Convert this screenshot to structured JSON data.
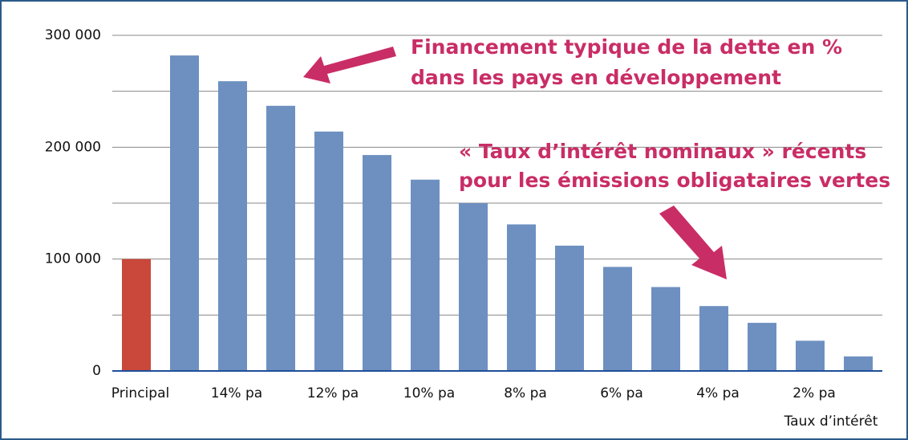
{
  "chart_data": {
    "type": "bar",
    "categories": [
      "Principal",
      null,
      "14% pa",
      null,
      "12% pa",
      null,
      "10% pa",
      null,
      "8% pa",
      null,
      "6% pa",
      null,
      "4% pa",
      null,
      "2% pa",
      null
    ],
    "values": [
      100000,
      282000,
      259000,
      237000,
      214000,
      193000,
      171000,
      150000,
      131000,
      112000,
      93000,
      75000,
      58000,
      43000,
      27000,
      13000
    ],
    "colors": [
      "#c9483b",
      "#6d90c0",
      "#6d90c0",
      "#6d90c0",
      "#6d90c0",
      "#6d90c0",
      "#6d90c0",
      "#6d90c0",
      "#6d90c0",
      "#6d90c0",
      "#6d90c0",
      "#6d90c0",
      "#6d90c0",
      "#6d90c0",
      "#6d90c0",
      "#6d90c0"
    ],
    "ylim": [
      0,
      300000
    ],
    "yticks": [
      {
        "value": 0,
        "label": "0"
      },
      {
        "value": 100000,
        "label": "100 000"
      },
      {
        "value": 200000,
        "label": "200 000"
      },
      {
        "value": 300000,
        "label": "300 000"
      }
    ],
    "minor_yticks": [
      50000,
      150000,
      250000
    ],
    "grid": true,
    "x_label": "Taux d’intérêt",
    "annotations": [
      {
        "lines": [
          "Financement typique de la dette en %",
          "dans les pays en développement"
        ]
      },
      {
        "lines": [
          "« Taux d’intérêt nominaux » récents",
          "pour les émissions obligataires vertes"
        ]
      }
    ]
  }
}
